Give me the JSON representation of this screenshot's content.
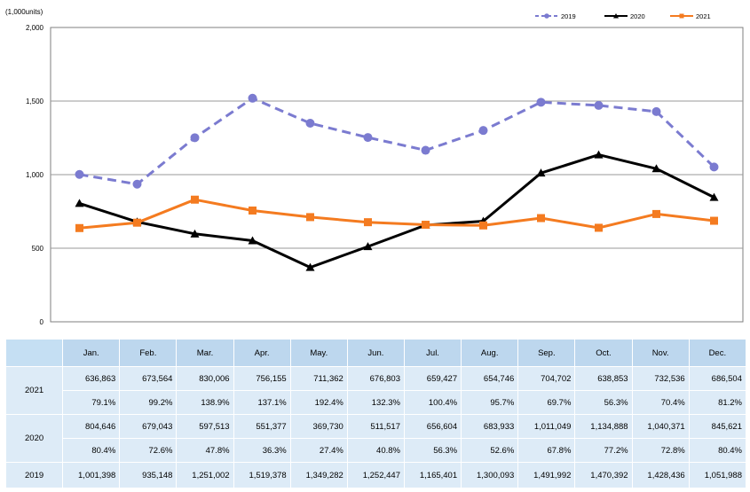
{
  "chart_data": {
    "type": "line",
    "unit_label": "(1,000units)",
    "categories": [
      "Jan.",
      "Feb.",
      "Mar.",
      "Apr.",
      "May.",
      "Jun.",
      "Jul.",
      "Aug.",
      "Sep.",
      "Oct.",
      "Nov.",
      "Dec."
    ],
    "ylim": [
      0,
      2000
    ],
    "yticks": [
      "0",
      "500",
      "1,000",
      "1,500",
      "2,000"
    ],
    "ytick_values": [
      0,
      500,
      1000,
      1500,
      2000
    ],
    "grid": true,
    "legend_position": "top-right",
    "series": [
      {
        "name": "2019",
        "color": "#7b7bd0",
        "style": "dashed",
        "marker": "circle",
        "values": [
          1001.398,
          935.148,
          1251.002,
          1519.378,
          1349.282,
          1252.447,
          1165.401,
          1300.093,
          1491.992,
          1470.392,
          1428.436,
          1051.988
        ]
      },
      {
        "name": "2020",
        "color": "#000000",
        "style": "solid",
        "marker": "triangle",
        "values": [
          804.646,
          679.043,
          597.513,
          551.377,
          369.73,
          511.517,
          656.604,
          683.933,
          1011.049,
          1134.888,
          1040.371,
          845.621
        ]
      },
      {
        "name": "2021",
        "color": "#f47b20",
        "style": "solid",
        "marker": "square",
        "values": [
          636.863,
          673.564,
          830.006,
          756.155,
          711.362,
          676.803,
          659.427,
          654.746,
          704.702,
          638.853,
          732.536,
          686.504
        ]
      }
    ]
  },
  "table": {
    "header": [
      "Jan.",
      "Feb.",
      "Mar.",
      "Apr.",
      "May.",
      "Jun.",
      "Jul.",
      "Aug.",
      "Sep.",
      "Oct.",
      "Nov.",
      "Dec."
    ],
    "row2021": {
      "label": "2021",
      "values": [
        "636,863",
        "673,564",
        "830,006",
        "756,155",
        "711,362",
        "676,803",
        "659,427",
        "654,746",
        "704,702",
        "638,853",
        "732,536",
        "686,504"
      ],
      "pct": [
        "79.1%",
        "99.2%",
        "138.9%",
        "137.1%",
        "192.4%",
        "132.3%",
        "100.4%",
        "95.7%",
        "69.7%",
        "56.3%",
        "70.4%",
        "81.2%"
      ]
    },
    "row2020": {
      "label": "2020",
      "values": [
        "804,646",
        "679,043",
        "597,513",
        "551,377",
        "369,730",
        "511,517",
        "656,604",
        "683,933",
        "1,011,049",
        "1,134,888",
        "1,040,371",
        "845,621"
      ],
      "pct": [
        "80.4%",
        "72.6%",
        "47.8%",
        "36.3%",
        "27.4%",
        "40.8%",
        "56.3%",
        "52.6%",
        "67.8%",
        "77.2%",
        "72.8%",
        "80.4%"
      ]
    },
    "row2019": {
      "label": "2019",
      "values": [
        "1,001,398",
        "935,148",
        "1,251,002",
        "1,519,378",
        "1,349,282",
        "1,252,447",
        "1,165,401",
        "1,300,093",
        "1,491,992",
        "1,470,392",
        "1,428,436",
        "1,051,988"
      ]
    }
  }
}
